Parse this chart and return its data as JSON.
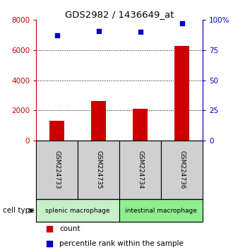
{
  "title": "GDS2982 / 1436649_at",
  "samples": [
    "GSM224733",
    "GSM224735",
    "GSM224734",
    "GSM224736"
  ],
  "counts": [
    1300,
    2600,
    2100,
    6300
  ],
  "percentiles": [
    87,
    91,
    90,
    97
  ],
  "cell_types": [
    {
      "label": "splenic macrophage",
      "samples": [
        0,
        1
      ],
      "color": "#90ee90"
    },
    {
      "label": "intestinal macrophage",
      "samples": [
        2,
        3
      ],
      "color": "#90ee90"
    }
  ],
  "ylim_left": [
    0,
    8000
  ],
  "ylim_right": [
    0,
    100
  ],
  "yticks_left": [
    0,
    2000,
    4000,
    6000,
    8000
  ],
  "yticks_right": [
    0,
    25,
    50,
    75,
    100
  ],
  "yticklabels_right": [
    "0",
    "25",
    "50",
    "75",
    "100%"
  ],
  "bar_color": "#cc0000",
  "scatter_color": "#0000cc",
  "bar_width": 0.35,
  "left_tick_color": "#cc0000",
  "right_tick_color": "#0000cc",
  "sample_box_color": "#d0d0d0",
  "splenic_color": "#c8f0c8",
  "intestinal_color": "#90ee90",
  "legend_bar_label": "count",
  "legend_scatter_label": "percentile rank within the sample",
  "cell_type_label": "cell type"
}
